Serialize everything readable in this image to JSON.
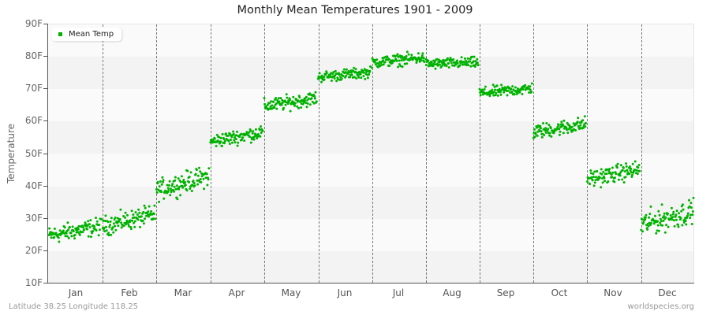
{
  "chart_data": {
    "type": "scatter",
    "title": "Monthly Mean Temperatures 1901 - 2009",
    "xlabel": "",
    "ylabel": "Temperature",
    "categories": [
      "Jan",
      "Feb",
      "Mar",
      "Apr",
      "May",
      "Jun",
      "Jul",
      "Aug",
      "Sep",
      "Oct",
      "Nov",
      "Dec"
    ],
    "yticks": [
      "10F",
      "20F",
      "30F",
      "40F",
      "50F",
      "60F",
      "70F",
      "80F",
      "90F"
    ],
    "ylim": [
      10,
      90
    ],
    "grid": "alternating horizontal bands, dashed vertical month separators",
    "legend": {
      "position": "top-left",
      "entries": [
        "Mean Temp"
      ]
    },
    "series": [
      {
        "name": "Mean Temp",
        "color": "#00b200",
        "years": "1901-2009",
        "points_per_month": 109,
        "monthly_ranges": [
          {
            "month": "Jan",
            "start_mean": 24.5,
            "end_mean": 27.5,
            "min": 20,
            "max": 30.5
          },
          {
            "month": "Feb",
            "start_mean": 27.5,
            "end_mean": 31.0,
            "min": 22.5,
            "max": 34
          },
          {
            "month": "Mar",
            "start_mean": 38.5,
            "end_mean": 43.0,
            "min": 34,
            "max": 46.5
          },
          {
            "month": "Apr",
            "start_mean": 53.5,
            "end_mean": 56.5,
            "min": 51,
            "max": 59.5
          },
          {
            "month": "May",
            "start_mean": 64.5,
            "end_mean": 67.0,
            "min": 62,
            "max": 70.5
          },
          {
            "month": "Jun",
            "start_mean": 73.5,
            "end_mean": 75.0,
            "min": 71,
            "max": 77.5
          },
          {
            "month": "Jul",
            "start_mean": 78.0,
            "end_mean": 79.5,
            "min": 75,
            "max": 82
          },
          {
            "month": "Aug",
            "start_mean": 77.5,
            "end_mean": 78.0,
            "min": 74,
            "max": 80.5
          },
          {
            "month": "Sep",
            "start_mean": 68.5,
            "end_mean": 70.0,
            "min": 66,
            "max": 73
          },
          {
            "month": "Oct",
            "start_mean": 56.5,
            "end_mean": 59.0,
            "min": 54,
            "max": 63
          },
          {
            "month": "Nov",
            "start_mean": 42.0,
            "end_mean": 45.0,
            "min": 38,
            "max": 48.5
          },
          {
            "month": "Dec",
            "start_mean": 28.0,
            "end_mean": 32.0,
            "min": 22.5,
            "max": 37.5
          }
        ]
      }
    ]
  },
  "header": {
    "title": "Monthly Mean Temperatures 1901 - 2009"
  },
  "axes": {
    "y_title": "Temperature",
    "y_ticks": [
      "90F",
      "80F",
      "70F",
      "60F",
      "50F",
      "40F",
      "30F",
      "20F",
      "10F"
    ],
    "x_ticks": [
      "Jan",
      "Feb",
      "Mar",
      "Apr",
      "May",
      "Jun",
      "Jul",
      "Aug",
      "Sep",
      "Oct",
      "Nov",
      "Dec"
    ]
  },
  "legend": {
    "label": "Mean Temp",
    "color": "#00b200"
  },
  "footer": {
    "location": "Latitude 38.25 Longitude 118.25",
    "credit": "worldspecies.org"
  }
}
